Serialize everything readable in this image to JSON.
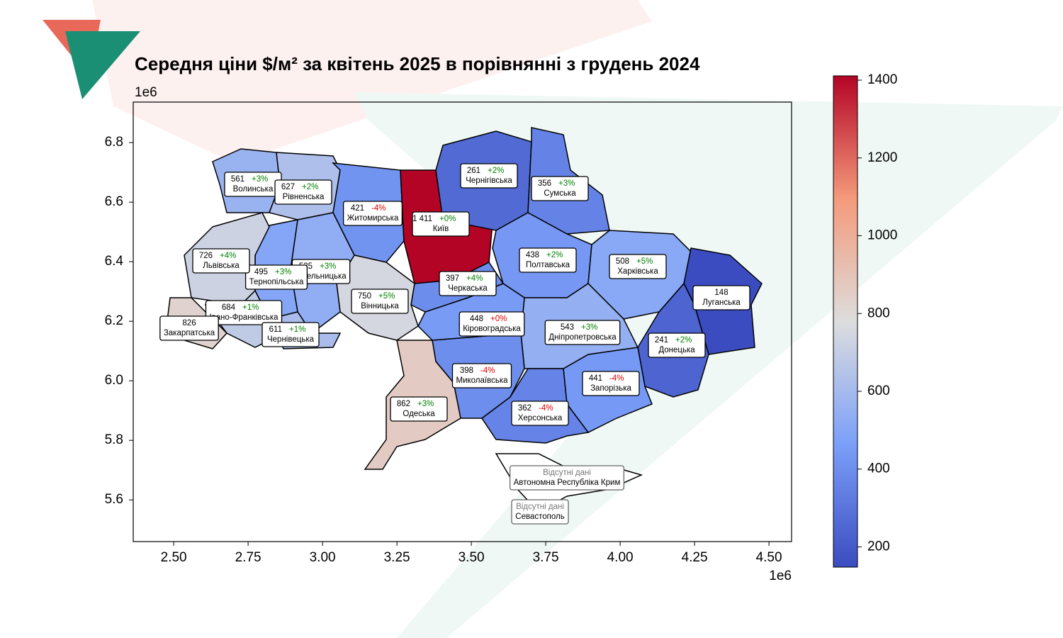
{
  "chart_data": {
    "type": "choropleth",
    "title": "Середня ціни $/м² за квітень  2025  в порівнянні з  грудень  2024",
    "xlim": [
      2.364,
      4.576
    ],
    "ylim": [
      5.46,
      6.936
    ],
    "x_offset_label": "1e6",
    "y_offset_label": "1e6",
    "xticks": [
      {
        "value": 2.5,
        "label": "2.50"
      },
      2.75,
      {
        "value": 3,
        "label": "3.00"
      },
      3.25,
      {
        "value": 3.5,
        "label": "3.50"
      },
      3.75,
      {
        "value": 4,
        "label": "4.00"
      },
      4.25,
      {
        "value": 4.5,
        "label": "4.50"
      }
    ],
    "yticks": [
      5.6,
      5.8,
      {
        "value": 6,
        "label": "6.0"
      },
      6.2,
      6.4,
      6.6,
      6.8
    ],
    "colormap": "coolwarm",
    "clim": [
      148,
      1411
    ],
    "cticks": [
      200,
      400,
      600,
      800,
      1000,
      1200,
      1400
    ],
    "regions": [
      {
        "name": "Волинська",
        "value": 561,
        "change": "+3%",
        "change_color": "#008000"
      },
      {
        "name": "Рівненська",
        "value": 627,
        "change": "+2%",
        "change_color": "#008000"
      },
      {
        "name": "Житомирська",
        "value": 421,
        "change": "-4%",
        "change_color": "#e00000"
      },
      {
        "name": "Київ",
        "value": 1411,
        "value_label": "1 411",
        "change": "+0%",
        "change_color": "#008000"
      },
      {
        "name": "Чернігівська",
        "value": 261,
        "change": "+2%",
        "change_color": "#008000"
      },
      {
        "name": "Сумська",
        "value": 356,
        "change": "+3%",
        "change_color": "#008000"
      },
      {
        "name": "Полтавська",
        "value": 438,
        "change": "+2%",
        "change_color": "#008000"
      },
      {
        "name": "Харківська",
        "value": 508,
        "change": "+5%",
        "change_color": "#008000"
      },
      {
        "name": "Луганська",
        "value": 148
      },
      {
        "name": "Донецька",
        "value": 241,
        "change": "+2%",
        "change_color": "#008000"
      },
      {
        "name": "Запорізька",
        "value": 441,
        "change": "-4%",
        "change_color": "#e00000"
      },
      {
        "name": "Дніпропетровська",
        "value": 543,
        "change": "+3%",
        "change_color": "#008000"
      },
      {
        "name": "Херсонська",
        "value": 362,
        "change": "-4%",
        "change_color": "#e00000"
      },
      {
        "name": "Миколаївська",
        "value": 398,
        "change": "-4%",
        "change_color": "#e00000"
      },
      {
        "name": "Одеська",
        "value": 862,
        "change": "+3%",
        "change_color": "#008000"
      },
      {
        "name": "Кіровоградська",
        "value": 448,
        "change": "+0%",
        "change_color": "#e00000"
      },
      {
        "name": "Черкаська",
        "value": 397,
        "change": "+4%",
        "change_color": "#008000"
      },
      {
        "name": "Вінницька",
        "value": 750,
        "change": "+5%",
        "change_color": "#008000"
      },
      {
        "name": "Хмельницька",
        "value": 535,
        "change": "+3%",
        "change_color": "#008000"
      },
      {
        "name": "Тернопільська",
        "value": 495,
        "change": "+3%",
        "change_color": "#008000"
      },
      {
        "name": "Львівська",
        "value": 726,
        "change": "+4%",
        "change_color": "#008000"
      },
      {
        "name": "Івано-Франківська",
        "value": 684,
        "change": "+1%",
        "change_color": "#008000"
      },
      {
        "name": "Закарпатська",
        "value": 826
      },
      {
        "name": "Чернівецька",
        "value": 611,
        "change": "+1%",
        "change_color": "#008000"
      },
      {
        "name": "Автономна Республіка Крим",
        "note": "Відсутні дані"
      },
      {
        "name": "Севастополь",
        "note": "Відсутні дані"
      }
    ]
  }
}
